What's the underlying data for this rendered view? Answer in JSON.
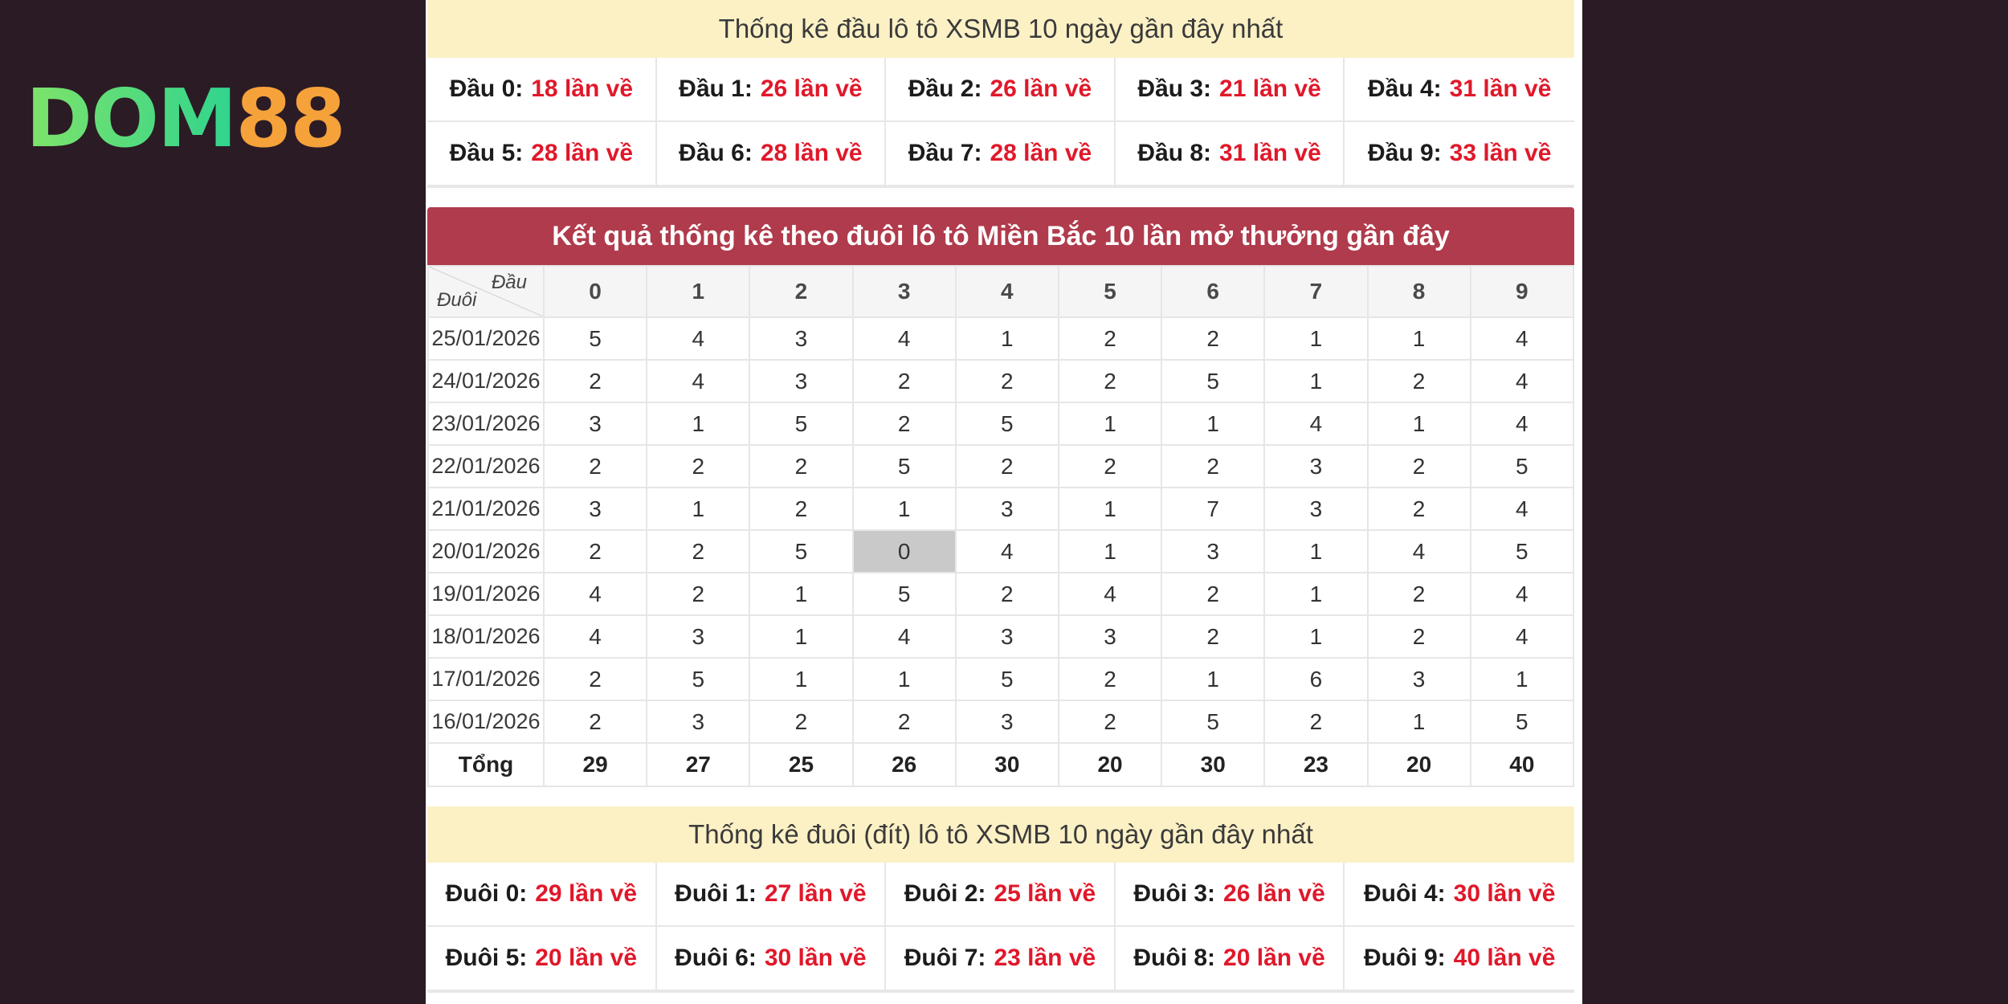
{
  "logo": {
    "part1": "DOM",
    "part2": "88"
  },
  "dau_section": {
    "title": "Thống kê đầu lô tô XSMB 10 ngày gần đây nhất",
    "items": [
      {
        "label": "Đầu 0:",
        "value": "18 lần về"
      },
      {
        "label": "Đầu 1:",
        "value": "26 lần về"
      },
      {
        "label": "Đầu 2:",
        "value": "26 lần về"
      },
      {
        "label": "Đầu 3:",
        "value": "21 lần về"
      },
      {
        "label": "Đầu 4:",
        "value": "31 lần về"
      },
      {
        "label": "Đầu 5:",
        "value": "28 lần về"
      },
      {
        "label": "Đầu 6:",
        "value": "28 lần về"
      },
      {
        "label": "Đầu 7:",
        "value": "28 lần về"
      },
      {
        "label": "Đầu 8:",
        "value": "31 lần về"
      },
      {
        "label": "Đầu 9:",
        "value": "33 lần về"
      }
    ]
  },
  "table": {
    "title": "Kết quả thống kê theo đuôi lô tô Miền Bắc 10 lần mở thưởng gần đây",
    "corner_top": "Đầu",
    "corner_bottom": "Đuôi",
    "headers": [
      "0",
      "1",
      "2",
      "3",
      "4",
      "5",
      "6",
      "7",
      "8",
      "9"
    ],
    "rows": [
      {
        "date": "25/01/2026",
        "cells": [
          "5",
          "4",
          "3",
          "4",
          "1",
          "2",
          "2",
          "1",
          "1",
          "4"
        ]
      },
      {
        "date": "24/01/2026",
        "cells": [
          "2",
          "4",
          "3",
          "2",
          "2",
          "2",
          "5",
          "1",
          "2",
          "4"
        ]
      },
      {
        "date": "23/01/2026",
        "cells": [
          "3",
          "1",
          "5",
          "2",
          "5",
          "1",
          "1",
          "4",
          "1",
          "4"
        ]
      },
      {
        "date": "22/01/2026",
        "cells": [
          "2",
          "2",
          "2",
          "5",
          "2",
          "2",
          "2",
          "3",
          "2",
          "5"
        ]
      },
      {
        "date": "21/01/2026",
        "cells": [
          "3",
          "1",
          "2",
          "1",
          "3",
          "1",
          "7",
          "3",
          "2",
          "4"
        ]
      },
      {
        "date": "20/01/2026",
        "cells": [
          "2",
          "2",
          "5",
          "0",
          "4",
          "1",
          "3",
          "1",
          "4",
          "5"
        ]
      },
      {
        "date": "19/01/2026",
        "cells": [
          "4",
          "2",
          "1",
          "5",
          "2",
          "4",
          "2",
          "1",
          "2",
          "4"
        ]
      },
      {
        "date": "18/01/2026",
        "cells": [
          "4",
          "3",
          "1",
          "4",
          "3",
          "3",
          "2",
          "1",
          "2",
          "4"
        ]
      },
      {
        "date": "17/01/2026",
        "cells": [
          "2",
          "5",
          "1",
          "1",
          "5",
          "2",
          "1",
          "6",
          "3",
          "1"
        ]
      },
      {
        "date": "16/01/2026",
        "cells": [
          "2",
          "3",
          "2",
          "2",
          "3",
          "2",
          "5",
          "2",
          "1",
          "5"
        ]
      }
    ],
    "total_label": "Tổng",
    "totals": [
      "29",
      "27",
      "25",
      "26",
      "30",
      "20",
      "30",
      "23",
      "20",
      "40"
    ],
    "highlight_color": "#c9c9c9"
  },
  "duoi_section": {
    "title": "Thống kê đuôi (đít) lô tô XSMB 10 ngày gần đây nhất",
    "items": [
      {
        "label": "Đuôi 0:",
        "value": "29 lần về"
      },
      {
        "label": "Đuôi 1:",
        "value": "27 lần về"
      },
      {
        "label": "Đuôi 2:",
        "value": "25 lần về"
      },
      {
        "label": "Đuôi 3:",
        "value": "26 lần về"
      },
      {
        "label": "Đuôi 4:",
        "value": "30 lần về"
      },
      {
        "label": "Đuôi 5:",
        "value": "20 lần về"
      },
      {
        "label": "Đuôi 6:",
        "value": "30 lần về"
      },
      {
        "label": "Đuôi 7:",
        "value": "23 lần về"
      },
      {
        "label": "Đuôi 8:",
        "value": "20 lần về"
      },
      {
        "label": "Đuôi 9:",
        "value": "40 lần về"
      }
    ]
  },
  "colors": {
    "background": "#2b1b25",
    "header_red": "#b03b4c",
    "header_cream": "#fcf1c5",
    "count_red": "#e0182a"
  }
}
